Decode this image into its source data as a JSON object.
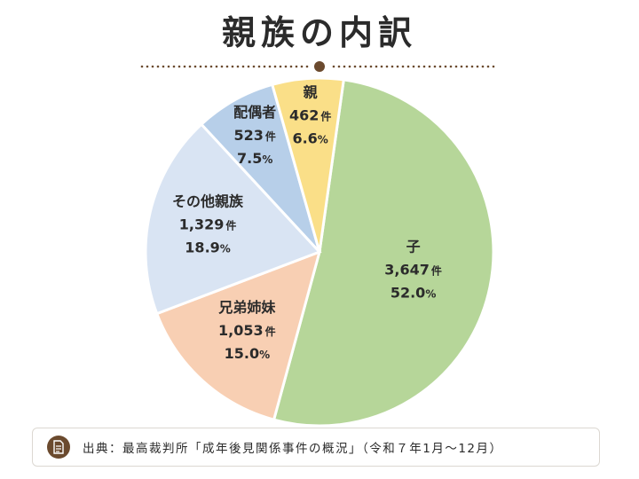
{
  "title": "親族の内訳",
  "source": "出典：最高裁判所「成年後見関係事件の概況」（令和７年1月～12月）",
  "colors": {
    "accent": "#6b4a2e",
    "dots": "#6b4a2e"
  },
  "icons": {
    "source": "document-icon"
  },
  "chart_data": {
    "type": "pie",
    "title": "親族の内訳",
    "slices": [
      {
        "label": "子",
        "count": "3,647",
        "unit": "件",
        "percent": "52.0",
        "value": 52.0,
        "color": "#b6d699"
      },
      {
        "label": "兄弟姉妹",
        "count": "1,053",
        "unit": "件",
        "percent": "15.0",
        "value": 15.0,
        "color": "#f8cfb3"
      },
      {
        "label": "その他親族",
        "count": "1,329",
        "unit": "件",
        "percent": "18.9",
        "value": 18.9,
        "color": "#d9e4f3"
      },
      {
        "label": "配偶者",
        "count": "523",
        "unit": "件",
        "percent": "7.5",
        "value": 7.5,
        "color": "#b7cfe9"
      },
      {
        "label": "親",
        "count": "462",
        "unit": "件",
        "percent": "6.6",
        "value": 6.6,
        "color": "#fadf88"
      }
    ]
  }
}
